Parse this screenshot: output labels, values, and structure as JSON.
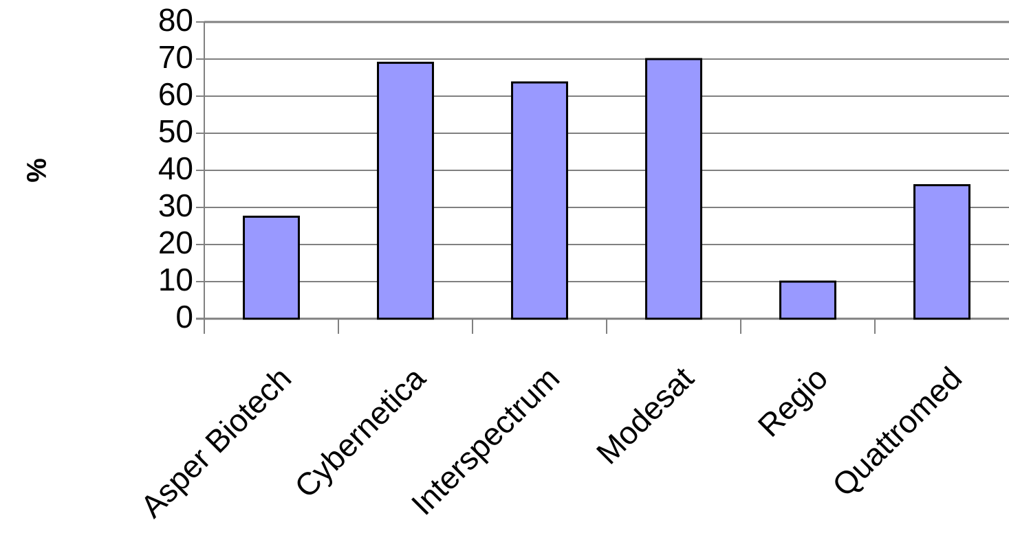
{
  "chart_data": {
    "type": "bar",
    "categories": [
      "Asper Biotech",
      "Cybernetica",
      "Interspectrum",
      "Modesat",
      "Regio",
      "Quattromed"
    ],
    "values": [
      27.5,
      69,
      63.7,
      70,
      10,
      36
    ],
    "title": "",
    "xlabel": "",
    "ylabel": "%",
    "ylim": [
      0,
      80
    ],
    "yticks": [
      0,
      10,
      20,
      30,
      40,
      50,
      60,
      70,
      80
    ],
    "grid": true,
    "legend": "none",
    "colors": {
      "bar_fill": "#9999ff",
      "bar_stroke": "#000000",
      "grid": "#000000",
      "axis": "#808080"
    }
  }
}
